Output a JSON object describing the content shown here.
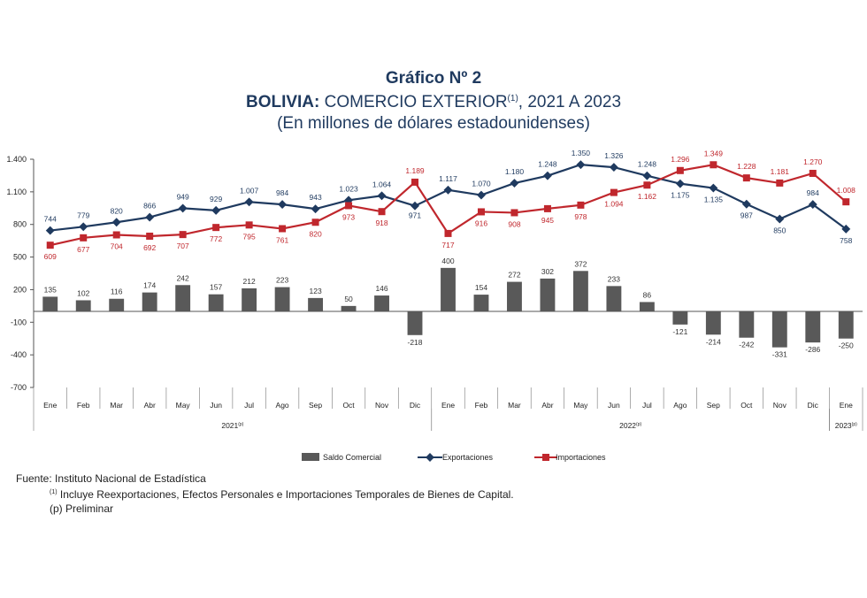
{
  "title": {
    "line1": "Gráfico Nº 2",
    "line2_bold": "BOLIVIA:",
    "line2_rest": " COMERCIO EXTERIOR",
    "line2_sup": "(1)",
    "line2_tail": ", 2021 A 2023",
    "line3": "(En millones de dólares estadounidenses)"
  },
  "chart_data": {
    "type": "bar",
    "categories": [
      "Ene",
      "Feb",
      "Mar",
      "Abr",
      "May",
      "Jun",
      "Jul",
      "Ago",
      "Sep",
      "Oct",
      "Nov",
      "Dic",
      "Ene",
      "Feb",
      "Mar",
      "Abr",
      "May",
      "Jun",
      "Jul",
      "Ago",
      "Sep",
      "Oct",
      "Nov",
      "Dic",
      "Ene"
    ],
    "years": [
      {
        "label": "2021",
        "sup": "(p)",
        "start": 0,
        "end": 11
      },
      {
        "label": "2022",
        "sup": "(p)",
        "start": 12,
        "end": 23
      },
      {
        "label": "2023",
        "sup": "(p)",
        "start": 24,
        "end": 24
      }
    ],
    "yticks": [
      1400,
      1100,
      800,
      500,
      200,
      -100,
      -400,
      -700
    ],
    "ytick_labels": [
      "1.400",
      "1.100",
      "800",
      "500",
      "200",
      "-100",
      "-400",
      "-700"
    ],
    "ylim": [
      -700,
      1400
    ],
    "series": [
      {
        "name": "Saldo Comercial",
        "kind": "bar",
        "color": "#595959",
        "values": [
          135,
          102,
          116,
          174,
          242,
          157,
          212,
          223,
          123,
          50,
          146,
          -218,
          400,
          154,
          272,
          302,
          372,
          233,
          86,
          -121,
          -214,
          -242,
          -331,
          -286,
          -250
        ],
        "labels": [
          "135",
          "102",
          "116",
          "174",
          "242",
          "157",
          "212",
          "223",
          "123",
          "50",
          "146",
          "-218",
          "400",
          "154",
          "272",
          "302",
          "372",
          "233",
          "86",
          "-121",
          "-214",
          "-242",
          "-331",
          "-286",
          "-250"
        ]
      },
      {
        "name": "Exportaciones",
        "kind": "line",
        "color": "#1f3a5f",
        "values": [
          744,
          779,
          820,
          866,
          949,
          929,
          1007,
          984,
          943,
          1023,
          1064,
          971,
          1117,
          1070,
          1180,
          1248,
          1350,
          1326,
          1248,
          1175,
          1135,
          987,
          850,
          984,
          758
        ],
        "labels": [
          "744",
          "779",
          "820",
          "866",
          "949",
          "929",
          "1.007",
          "984",
          "943",
          "1.023",
          "1.064",
          "971",
          "1.117",
          "1.070",
          "1.180",
          "1.248",
          "1.350",
          "1.326",
          "1.248",
          "1.175",
          "1.135",
          "987",
          "850",
          "984",
          "758"
        ]
      },
      {
        "name": "Importaciones",
        "kind": "line",
        "color": "#c0272d",
        "values": [
          609,
          677,
          704,
          692,
          707,
          772,
          795,
          761,
          820,
          973,
          918,
          1189,
          717,
          916,
          908,
          945,
          978,
          1094,
          1162,
          1296,
          1349,
          1228,
          1181,
          1270,
          1008
        ],
        "labels": [
          "609",
          "677",
          "704",
          "692",
          "707",
          "772",
          "795",
          "761",
          "820",
          "973",
          "918",
          "1.189",
          "717",
          "916",
          "908",
          "945",
          "978",
          "1.094",
          "1.162",
          "1.296",
          "1.349",
          "1.228",
          "1.181",
          "1.270",
          "1.008"
        ]
      }
    ]
  },
  "footnotes": {
    "source": "Fuente: Instituto Nacional de Estadística",
    "note1_sup": "(1)",
    "note1": " Incluye Reexportaciones, Efectos Personales e  Importaciones Temporales de Bienes de Capital.",
    "note2": "(p) Preliminar"
  }
}
